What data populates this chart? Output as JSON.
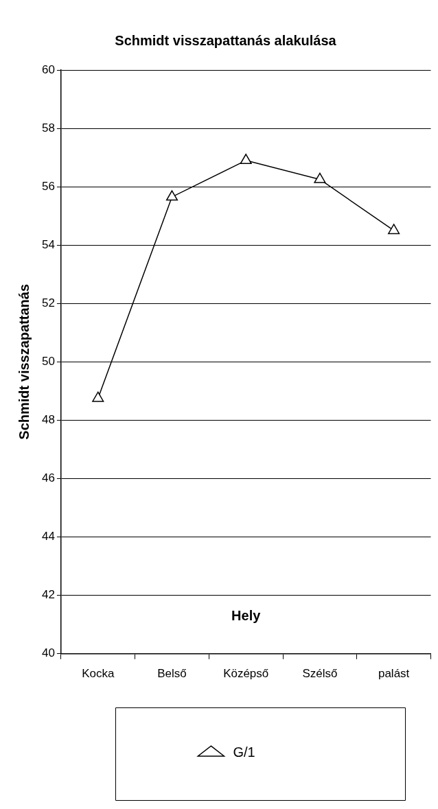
{
  "chart_data": {
    "type": "line",
    "title": "Schmidt visszapattanás alakulása",
    "xlabel": "Hely",
    "ylabel": "Schmidt visszapattanás",
    "categories": [
      "Kocka",
      "Belső",
      "Középső",
      "Szélső",
      "palást"
    ],
    "series": [
      {
        "name": "G/1",
        "color": "#000000",
        "values": [
          48.75,
          55.65,
          56.9,
          56.25,
          54.5
        ]
      }
    ],
    "ylim": [
      40,
      60
    ],
    "yticks": [
      40,
      42,
      44,
      46,
      48,
      50,
      52,
      54,
      56,
      58,
      60
    ],
    "grid": "y",
    "legend": "bottom",
    "marker": "triangle",
    "line_style": "solid"
  }
}
